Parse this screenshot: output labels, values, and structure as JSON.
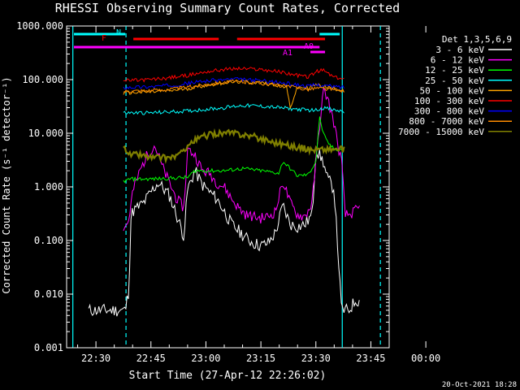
{
  "chart_data": {
    "type": "line",
    "title": "RHESSI Observing Summary Count Rates, Corrected",
    "xlabel": "Start Time (27-Apr-12 22:26:02)",
    "ylabel": "Corrected Count Rate (s⁻¹ detector⁻¹)",
    "footer": "20-Oct-2021 18:28",
    "y_scale": "log",
    "ylim": [
      0.001,
      1000
    ],
    "x_range_min": [
      -6,
      61
    ],
    "x_ticks": [
      "22:30",
      "22:45",
      "23:00",
      "23:15",
      "23:30",
      "23:45",
      "00:00"
    ],
    "y_ticks": [
      "0.001",
      "0.010",
      "0.100",
      "1.000",
      "10.000",
      "100.000",
      "1000.000"
    ],
    "legend_title": "Det 1,3,5,6,9",
    "legend_position": "right",
    "series": [
      {
        "name": "3 - 6 keV",
        "color": "#ffffff",
        "x": [
          -2,
          8,
          9,
          9.5,
          10,
          13,
          15,
          17,
          20,
          22,
          24,
          25,
          27,
          29,
          31,
          33,
          35,
          37,
          39,
          41,
          43,
          45,
          47,
          49,
          51,
          53,
          55,
          57,
          59,
          60,
          62,
          63,
          65,
          67,
          69,
          71,
          72
        ],
        "y": [
          0.005,
          0.005,
          0.012,
          0.25,
          0.35,
          0.5,
          0.8,
          1.2,
          0.7,
          0.3,
          0.12,
          0.9,
          2.0,
          1.1,
          0.8,
          0.6,
          0.35,
          0.2,
          0.15,
          0.11,
          0.09,
          0.08,
          0.09,
          0.14,
          0.45,
          0.2,
          0.18,
          0.2,
          0.3,
          5.0,
          3.0,
          1.5,
          0.9,
          0.005,
          0.005,
          0.008,
          0.007
        ]
      },
      {
        "name": "6 - 12 keV",
        "color": "#ff00ff",
        "x": [
          7.5,
          8.5,
          9,
          10,
          12,
          14,
          16,
          17,
          18,
          20,
          22,
          24,
          25,
          27,
          29,
          31,
          33,
          35,
          37,
          39,
          41,
          43,
          45,
          47,
          49,
          51,
          53,
          55,
          57,
          59,
          60,
          62,
          63,
          65,
          66,
          67,
          68,
          69,
          72
        ],
        "y": [
          0.18,
          0.2,
          0.25,
          0.8,
          2,
          4,
          6,
          4,
          2.5,
          1.2,
          0.6,
          0.4,
          5,
          4,
          2,
          1.8,
          1.2,
          1,
          0.6,
          0.4,
          0.3,
          0.28,
          0.26,
          0.28,
          0.35,
          1.3,
          0.5,
          0.3,
          0.28,
          0.5,
          3,
          60,
          50,
          15,
          6,
          3,
          0.3,
          0.3,
          0.4
        ]
      },
      {
        "name": "12 - 25 keV",
        "color": "#00ff00",
        "x": [
          7.5,
          8.5,
          9,
          15,
          25,
          27,
          30,
          35,
          40,
          45,
          50,
          51,
          55,
          58,
          60,
          61,
          62,
          63,
          65,
          67,
          68
        ],
        "y": [
          1.3,
          1.3,
          1.4,
          1.4,
          1.5,
          2.0,
          2.0,
          2.0,
          2.2,
          2.0,
          1.8,
          3.0,
          1.6,
          1.7,
          3.0,
          20,
          10,
          7,
          5,
          5,
          5
        ]
      },
      {
        "name": "25 - 50 keV",
        "color": "#00ffff",
        "x": [
          7.5,
          8.5,
          9,
          15,
          20,
          25,
          30,
          35,
          38,
          40,
          45,
          50,
          55,
          58,
          60,
          62,
          65,
          68
        ],
        "y": [
          24,
          24,
          24,
          24,
          25,
          26,
          28,
          30,
          32,
          33,
          32,
          30,
          28,
          27,
          27,
          30,
          27,
          25
        ]
      },
      {
        "name": "50 - 100 keV",
        "color": "#ffa500",
        "x": [
          7.5,
          8.5,
          9,
          15,
          20,
          25,
          30,
          35,
          38,
          40,
          45,
          50,
          52,
          53,
          55,
          58,
          60,
          62,
          65,
          68
        ],
        "y": [
          55,
          57,
          57,
          59,
          62,
          68,
          78,
          88,
          90,
          92,
          88,
          78,
          72,
          30,
          72,
          70,
          80,
          75,
          68,
          62
        ]
      },
      {
        "name": "100 - 300 keV",
        "color": "#ff0000",
        "x": [
          7.5,
          8.5,
          9,
          15,
          20,
          25,
          30,
          35,
          38,
          40,
          45,
          50,
          55,
          58,
          60,
          62,
          65,
          68
        ],
        "y": [
          95,
          96,
          96,
          100,
          108,
          120,
          140,
          155,
          160,
          160,
          155,
          140,
          120,
          112,
          140,
          150,
          110,
          100
        ]
      },
      {
        "name": "300 - 800 keV",
        "color": "#0000ff",
        "x": [
          7.5,
          8.5,
          9,
          15,
          20,
          25,
          30,
          35,
          38,
          40,
          45,
          50,
          55,
          58,
          60,
          62,
          65,
          68
        ],
        "y": [
          70,
          72,
          72,
          74,
          78,
          85,
          95,
          100,
          102,
          100,
          96,
          88,
          80,
          75,
          80,
          78,
          74,
          72
        ]
      },
      {
        "name": "800 - 7000 keV",
        "color": "#ff8c00",
        "x": [
          7.5,
          8.5,
          9,
          15,
          20,
          25,
          30,
          35,
          38,
          40,
          45,
          50,
          55,
          58,
          60,
          62,
          65,
          68
        ],
        "y": [
          60,
          62,
          62,
          63,
          66,
          72,
          82,
          90,
          92,
          90,
          86,
          78,
          70,
          66,
          70,
          68,
          64,
          62
        ]
      },
      {
        "name": "7000 - 15000 keV",
        "color": "#808000",
        "x": [
          7.5,
          8.5,
          9,
          12,
          15,
          20,
          23,
          25,
          28,
          30,
          33,
          35,
          38,
          40,
          42,
          45,
          48,
          50,
          52,
          55,
          58,
          60,
          62,
          65,
          68
        ],
        "y": [
          5,
          5,
          4,
          4,
          3.5,
          3.5,
          4,
          6,
          8,
          9,
          10,
          10,
          10,
          9.5,
          9,
          8,
          7,
          6.5,
          6,
          5.5,
          5,
          5,
          5,
          5,
          5
        ]
      }
    ],
    "annotations": [
      {
        "label": "N",
        "color": "#00ffff"
      },
      {
        "label": "F",
        "color": "#ff0000"
      },
      {
        "label": "A1",
        "color": "#ff00ff"
      },
      {
        "label": "A0",
        "color": "#ff00ff"
      }
    ],
    "state_bars": [
      {
        "label": "N",
        "color": "#00ffff",
        "segments": [
          [
            -6,
            8
          ],
          [
            66.5,
            61
          ]
        ]
      },
      {
        "label": "F",
        "color": "#ff0000",
        "segments": [
          [
            10.2,
            33.5
          ],
          [
            38.5,
            62.5
          ]
        ]
      },
      {
        "label": "A1",
        "color": "#ff00ff",
        "segments": [
          [
            -6,
            61
          ]
        ]
      },
      {
        "label": "A0",
        "color": "#ff00ff",
        "segments": [
          [
            58.5,
            62.5
          ]
        ]
      }
    ],
    "vlines": [
      {
        "x": -6.3,
        "color": "#00ffff",
        "style": "solid"
      },
      {
        "x": 8.2,
        "color": "#00ffff",
        "style": "dashed"
      },
      {
        "x": 67.2,
        "color": "#00ffff",
        "style": "solid"
      },
      {
        "x": 77.6,
        "color": "#00ffff",
        "style": "dashed"
      }
    ]
  }
}
